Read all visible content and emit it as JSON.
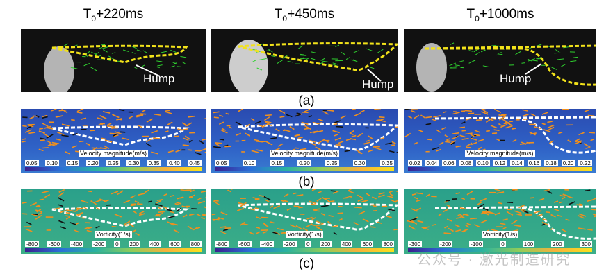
{
  "titles": [
    "T0+220ms",
    "T0+450ms",
    "T0+1000ms"
  ],
  "title_parts": [
    {
      "base": "T",
      "sub": "0",
      "rest": "+220ms"
    },
    {
      "base": "T",
      "sub": "0",
      "rest": "+450ms"
    },
    {
      "base": "T",
      "sub": "0",
      "rest": "+1000ms"
    }
  ],
  "row_a": {
    "label": "(a)",
    "annotation": "Hump"
  },
  "row_b": {
    "label": "(b)",
    "colorbar_title": "Velocity magnitude(m/s)",
    "ticks": [
      [
        "0.05",
        "0.10",
        "0.15",
        "0.20",
        "0.25",
        "0.30",
        "0.35",
        "0.40",
        "0.45"
      ],
      [
        "0.05",
        "0.10",
        "0.15",
        "0.20",
        "0.25",
        "0.30",
        "0.35"
      ],
      [
        "0.02",
        "0.04",
        "0.06",
        "0.08",
        "0.10",
        "0.12",
        "0.14",
        "0.16",
        "0.18",
        "0.20",
        "0.22"
      ]
    ]
  },
  "row_c": {
    "label": "(c)",
    "colorbar_title": "Vorticity(1/s)",
    "ticks": [
      [
        "-800",
        "-600",
        "-400",
        "-200",
        "0",
        "200",
        "400",
        "600",
        "800"
      ],
      [
        "-800",
        "-600",
        "-400",
        "-200",
        "0",
        "200",
        "400",
        "600",
        "800"
      ],
      [
        "-300",
        "-200",
        "-100",
        "0",
        "100",
        "200",
        "300"
      ]
    ]
  },
  "watermark": "公众号 · 激光制造研究",
  "colors": {
    "outline": "#f2e21a",
    "arrow_orange": "#f0901e",
    "arrow_green": "#2fd02f"
  }
}
